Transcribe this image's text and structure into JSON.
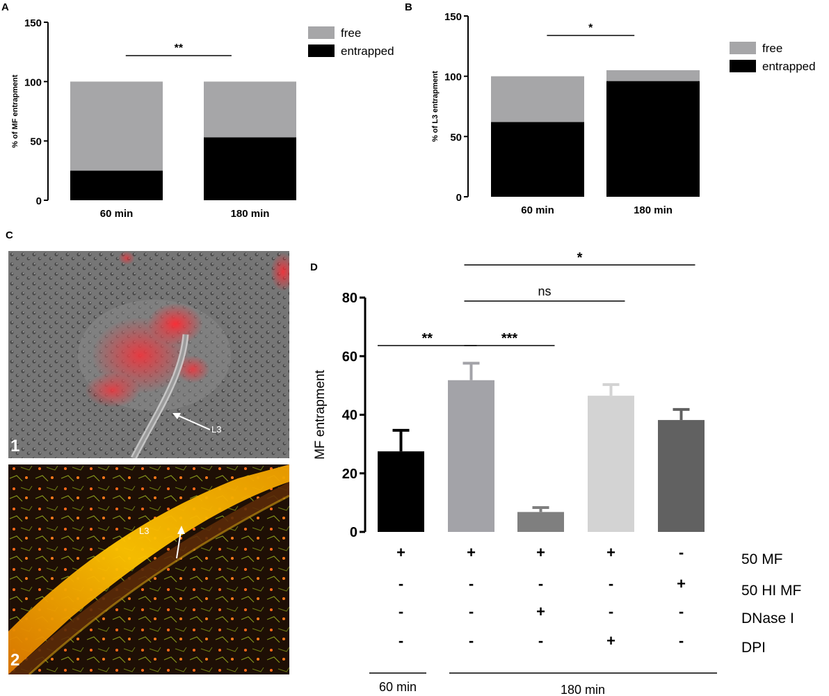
{
  "panels": {
    "a_letter": "A",
    "b_letter": "B",
    "c_letter": "C",
    "d_letter": "D"
  },
  "micrographs": {
    "img1_number": "1",
    "img1_label": "L3",
    "img2_number": "2",
    "img2_label": "L3"
  },
  "conditions": {
    "rows": [
      {
        "label": "50 MF",
        "values": [
          "+",
          "+",
          "+",
          "+",
          "-"
        ]
      },
      {
        "label": "50 HI MF",
        "values": [
          "-",
          "-",
          "-",
          "-",
          "+"
        ]
      },
      {
        "label": "DNase I",
        "values": [
          "-",
          "-",
          "+",
          "-",
          "-"
        ]
      },
      {
        "label": "DPI",
        "values": [
          "-",
          "-",
          "-",
          "+",
          "-"
        ]
      }
    ],
    "time_groups": [
      "60 min",
      "180 min"
    ]
  },
  "colors": {
    "free": "#a6a6a8",
    "entrapped": "#000000",
    "d_bars": [
      "#000000",
      "#a3a3a8",
      "#7f7f7f",
      "#d3d3d3",
      "#616161"
    ],
    "micro1_bg": "#6f6f6f",
    "micro1_signal": "#e8222a",
    "micro2_bg": "#2a1406",
    "micro2_signal": "#f2b000"
  },
  "chart_data": [
    {
      "panel": "A",
      "type": "bar",
      "stacked": true,
      "categories": [
        "60 min",
        "180 min"
      ],
      "series": [
        {
          "name": "entrapped",
          "values": [
            25,
            53
          ]
        },
        {
          "name": "free",
          "values": [
            75,
            47
          ]
        }
      ],
      "ylabel": "% of MF entrapment",
      "ylim": [
        0,
        150
      ],
      "yticks": [
        "0",
        "50",
        "100",
        "150"
      ],
      "legend_position": "top-right",
      "significance": [
        {
          "from": 0,
          "to": 1,
          "label": "**"
        }
      ]
    },
    {
      "panel": "B",
      "type": "bar",
      "stacked": true,
      "categories": [
        "60 min",
        "180 min"
      ],
      "series": [
        {
          "name": "entrapped",
          "values": [
            62,
            96
          ]
        },
        {
          "name": "free",
          "values": [
            38,
            9
          ]
        }
      ],
      "ylabel": "% of L3 entrapment",
      "ylim": [
        0,
        150
      ],
      "yticks": [
        "0",
        "50",
        "100",
        "150"
      ],
      "legend_position": "top-right",
      "significance": [
        {
          "from": 0,
          "to": 1,
          "label": "*"
        }
      ]
    },
    {
      "panel": "D",
      "type": "bar",
      "categories": [
        "1",
        "2",
        "3",
        "4",
        "5"
      ],
      "values": [
        27.5,
        51.8,
        6.8,
        46.5,
        38.2
      ],
      "errors": [
        7.2,
        5.8,
        1.5,
        3.8,
        3.6
      ],
      "ylabel": "MF entrapment",
      "ylim": [
        0,
        80
      ],
      "yticks": [
        "0",
        "20",
        "40",
        "60",
        "80"
      ],
      "significance": [
        {
          "from": 0,
          "to": 1,
          "label": "**"
        },
        {
          "from": 1,
          "to": 2,
          "label": "***"
        },
        {
          "from": 1,
          "to": 3,
          "label": "ns"
        },
        {
          "from": 1,
          "to": 4,
          "label": "*"
        }
      ]
    }
  ]
}
